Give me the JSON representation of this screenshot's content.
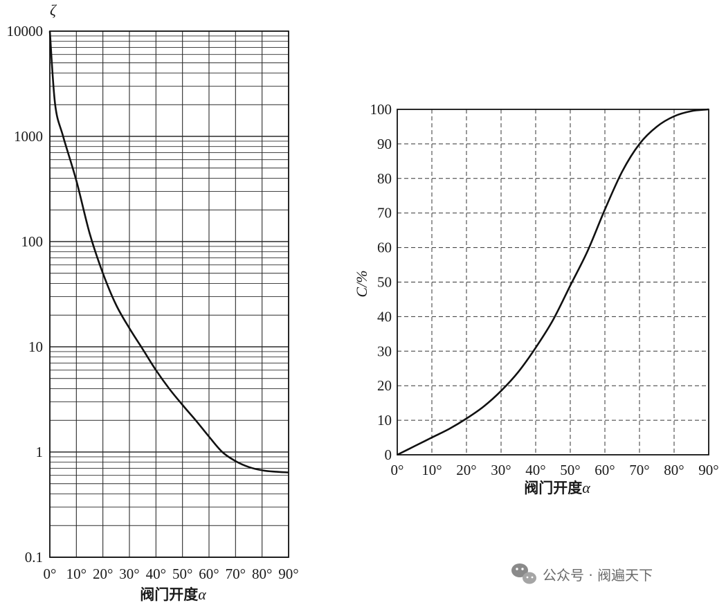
{
  "chart_data": [
    {
      "type": "line",
      "y_axis_symbol": "ζ",
      "xlabel": "阀门开度",
      "xlabel_symbol": "α",
      "x": [
        0,
        2,
        5,
        10,
        15,
        20,
        25,
        30,
        35,
        40,
        45,
        50,
        55,
        60,
        65,
        70,
        75,
        80,
        85,
        90
      ],
      "x_tick_labels": [
        "0°",
        "10°",
        "20°",
        "30°",
        "40°",
        "50°",
        "60°",
        "70°",
        "80°",
        "90°"
      ],
      "y_tick_labels": [
        "10000",
        "1000",
        "100",
        "10",
        "1",
        "0.1"
      ],
      "y": [
        10000,
        2000,
        1000,
        380,
        120,
        50,
        25,
        15,
        9.5,
        6,
        4,
        2.8,
        2,
        1.4,
        1,
        0.82,
        0.72,
        0.67,
        0.65,
        0.64
      ],
      "ylim": [
        0.1,
        10000
      ],
      "xlim": [
        0,
        90
      ],
      "y_scale": "log",
      "grid": true,
      "line_color": "#111111"
    },
    {
      "type": "line",
      "ylabel": "C/%",
      "xlabel": "阀门开度",
      "xlabel_symbol": "α",
      "x": [
        0,
        5,
        10,
        15,
        20,
        25,
        30,
        35,
        40,
        45,
        50,
        55,
        60,
        65,
        70,
        75,
        80,
        85,
        90
      ],
      "x_tick_labels": [
        "0°",
        "10°",
        "20°",
        "30°",
        "40°",
        "50°",
        "60°",
        "70°",
        "80°",
        "90°"
      ],
      "y_tick_labels": [
        "0",
        "10",
        "20",
        "30",
        "40",
        "50",
        "60",
        "70",
        "80",
        "90",
        "100"
      ],
      "y": [
        0,
        2.5,
        5,
        7.5,
        10.5,
        14,
        18.5,
        24,
        31,
        39,
        49,
        59,
        71,
        82,
        90,
        95,
        98,
        99.5,
        100
      ],
      "ylim": [
        0,
        100
      ],
      "xlim": [
        0,
        90
      ],
      "grid": true,
      "grid_style": "dashed",
      "line_color": "#111111"
    }
  ],
  "watermark": {
    "icon": "wechat-icon",
    "text": "公众号 · 阀遍天下"
  }
}
